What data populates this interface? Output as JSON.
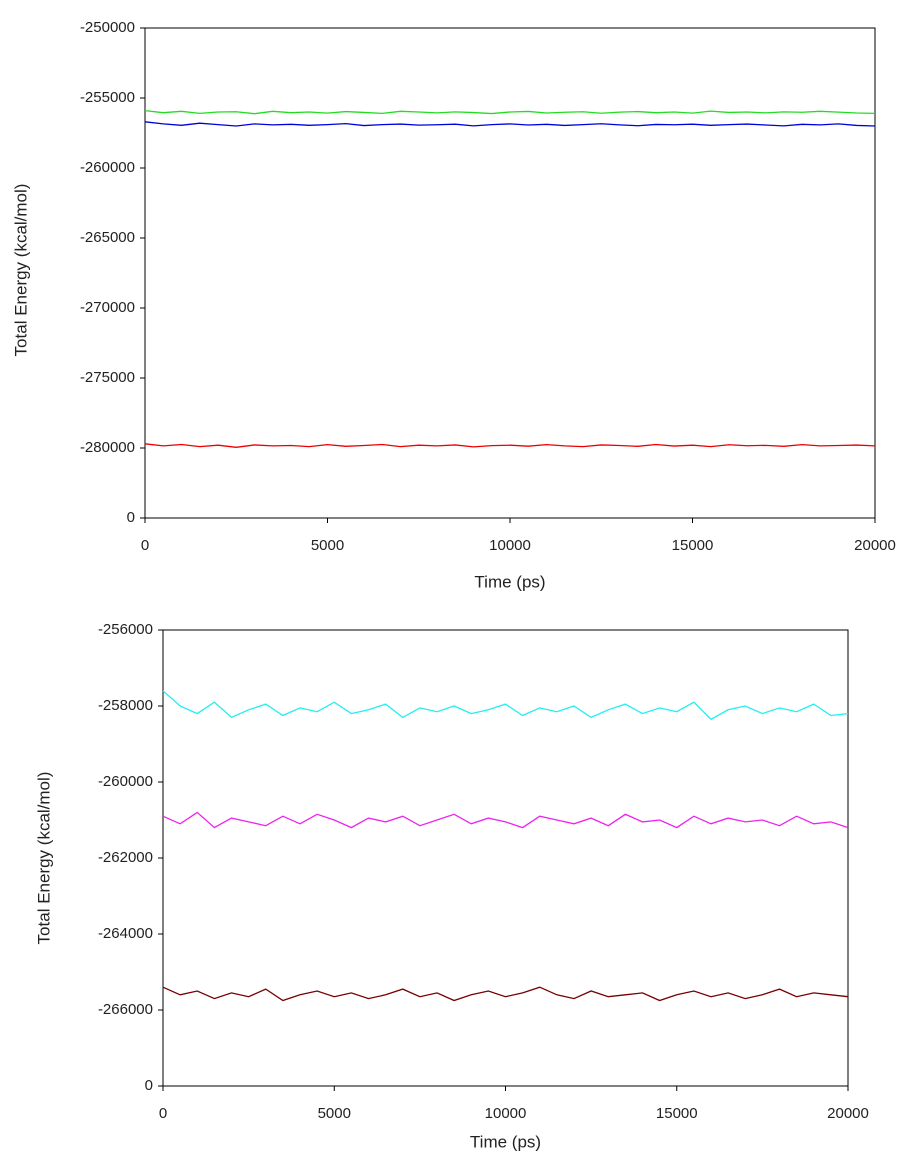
{
  "chart_data": [
    {
      "type": "line",
      "xlabel": "Time (ps)",
      "ylabel": "Total Energy (kcal/mol)",
      "xlim": [
        0,
        20000
      ],
      "xticks": [
        0,
        5000,
        10000,
        15000,
        20000
      ],
      "ylim": [
        -285000,
        -250000
      ],
      "yticks": [
        -250000,
        -255000,
        -260000,
        -265000,
        -270000,
        -275000,
        -280000,
        {
          "value": -285000,
          "label": "0"
        }
      ],
      "x": [
        0,
        500,
        1000,
        1500,
        2000,
        2500,
        3000,
        3500,
        4000,
        4500,
        5000,
        5500,
        6000,
        6500,
        7000,
        7500,
        8000,
        8500,
        9000,
        9500,
        10000,
        10500,
        11000,
        11500,
        12000,
        12500,
        13000,
        13500,
        14000,
        14500,
        15000,
        15500,
        16000,
        16500,
        17000,
        17500,
        18000,
        18500,
        19000,
        19500,
        20000
      ],
      "series": [
        {
          "color": "#22dd22",
          "values": [
            -255900,
            -256050,
            -255950,
            -256100,
            -256000,
            -255980,
            -256120,
            -255950,
            -256050,
            -256000,
            -256080,
            -255970,
            -256030,
            -256100,
            -255950,
            -256000,
            -256060,
            -255990,
            -256040,
            -256110,
            -256000,
            -255960,
            -256070,
            -256020,
            -255980,
            -256090,
            -256010,
            -255970,
            -256050,
            -256000,
            -256080,
            -255940,
            -256030,
            -256000,
            -256060,
            -255990,
            -256020,
            -255950,
            -256010,
            -256070,
            -256100
          ]
        },
        {
          "color": "#0000dd",
          "values": [
            -256700,
            -256850,
            -256950,
            -256800,
            -256900,
            -257000,
            -256850,
            -256920,
            -256880,
            -256950,
            -256900,
            -256830,
            -256970,
            -256900,
            -256860,
            -256940,
            -256910,
            -256870,
            -256990,
            -256900,
            -256850,
            -256930,
            -256880,
            -256960,
            -256900,
            -256840,
            -256920,
            -256980,
            -256890,
            -256910,
            -256870,
            -256950,
            -256900,
            -256860,
            -256930,
            -256990,
            -256880,
            -256920,
            -256850,
            -256960,
            -257000
          ]
        },
        {
          "color": "#ee0000",
          "values": [
            -279700,
            -279850,
            -279750,
            -279900,
            -279800,
            -279950,
            -279780,
            -279850,
            -279820,
            -279900,
            -279760,
            -279880,
            -279820,
            -279750,
            -279900,
            -279800,
            -279850,
            -279780,
            -279920,
            -279830,
            -279800,
            -279870,
            -279760,
            -279850,
            -279900,
            -279780,
            -279820,
            -279880,
            -279750,
            -279860,
            -279800,
            -279900,
            -279770,
            -279840,
            -279810,
            -279880,
            -279760,
            -279850,
            -279820,
            -279790,
            -279850
          ]
        }
      ]
    },
    {
      "type": "line",
      "xlabel": "Time (ps)",
      "ylabel": "Total Energy (kcal/mol)",
      "xlim": [
        0,
        20000
      ],
      "xticks": [
        0,
        5000,
        10000,
        15000,
        20000
      ],
      "ylim": [
        -268000,
        -256000
      ],
      "yticks": [
        -256000,
        -258000,
        -260000,
        -262000,
        -264000,
        -266000,
        {
          "value": -268000,
          "label": "0"
        }
      ],
      "x": [
        0,
        500,
        1000,
        1500,
        2000,
        2500,
        3000,
        3500,
        4000,
        4500,
        5000,
        5500,
        6000,
        6500,
        7000,
        7500,
        8000,
        8500,
        9000,
        9500,
        10000,
        10500,
        11000,
        11500,
        12000,
        12500,
        13000,
        13500,
        14000,
        14500,
        15000,
        15500,
        16000,
        16500,
        17000,
        17500,
        18000,
        18500,
        19000,
        19500,
        20000
      ],
      "series": [
        {
          "color": "#22eeee",
          "values": [
            -257600,
            -258000,
            -258200,
            -257900,
            -258300,
            -258100,
            -257950,
            -258250,
            -258050,
            -258150,
            -257900,
            -258200,
            -258100,
            -257950,
            -258300,
            -258050,
            -258150,
            -258000,
            -258200,
            -258100,
            -257950,
            -258250,
            -258050,
            -258150,
            -258000,
            -258300,
            -258100,
            -257950,
            -258200,
            -258050,
            -258150,
            -257900,
            -258350,
            -258100,
            -258000,
            -258200,
            -258050,
            -258150,
            -257950,
            -258250,
            -258200
          ]
        },
        {
          "color": "#ee22ee",
          "values": [
            -260900,
            -261100,
            -260800,
            -261200,
            -260950,
            -261050,
            -261150,
            -260900,
            -261100,
            -260850,
            -261000,
            -261200,
            -260950,
            -261050,
            -260900,
            -261150,
            -261000,
            -260850,
            -261100,
            -260950,
            -261050,
            -261200,
            -260900,
            -261000,
            -261100,
            -260950,
            -261150,
            -260850,
            -261050,
            -261000,
            -261200,
            -260900,
            -261100,
            -260950,
            -261050,
            -261000,
            -261150,
            -260900,
            -261100,
            -261050,
            -261200
          ]
        },
        {
          "color": "#770000",
          "values": [
            -265400,
            -265600,
            -265500,
            -265700,
            -265550,
            -265650,
            -265450,
            -265750,
            -265600,
            -265500,
            -265650,
            -265550,
            -265700,
            -265600,
            -265450,
            -265650,
            -265550,
            -265750,
            -265600,
            -265500,
            -265650,
            -265550,
            -265400,
            -265600,
            -265700,
            -265500,
            -265650,
            -265600,
            -265550,
            -265750,
            -265600,
            -265500,
            -265650,
            -265550,
            -265700,
            -265600,
            -265450,
            -265650,
            -265550,
            -265600,
            -265650
          ]
        }
      ]
    }
  ]
}
